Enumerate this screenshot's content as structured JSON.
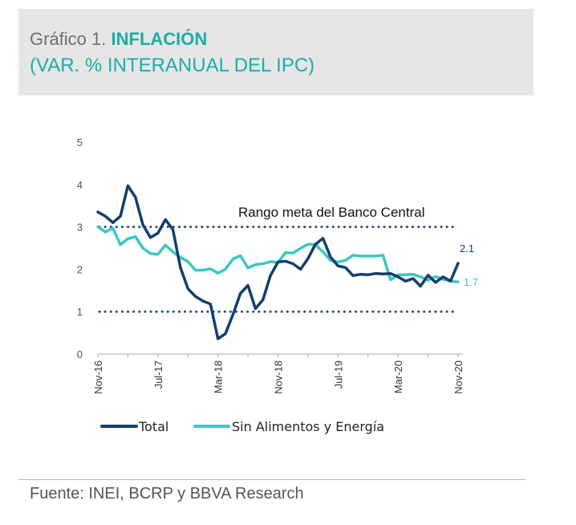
{
  "header": {
    "prefix": "Gráfico 1.",
    "title": "INFLACIÓN",
    "subtitle": "(VAR. % INTERANUAL DEL IPC)"
  },
  "footer": {
    "source": "Fuente: INEI, BCRP y BBVA Research"
  },
  "colors": {
    "total": "#123f6e",
    "core": "#3dc6c4",
    "target_band": "#1f4e79",
    "title_accent": "#1aaea8"
  },
  "chart_data": {
    "type": "line",
    "x_tick_labels": [
      "Nov-16",
      "Jul-17",
      "Mar-18",
      "Nov-18",
      "Jul-19",
      "Mar-20",
      "Nov-20"
    ],
    "y_ticks": [
      "0",
      "1",
      "2",
      "3",
      "4",
      "5"
    ],
    "ylim": [
      0,
      5
    ],
    "grid": false,
    "legend_position": "bottom",
    "annotation": "Rango meta del Banco Central",
    "target_range": [
      1,
      3
    ],
    "x": [
      "2016-11",
      "2016-12",
      "2017-01",
      "2017-02",
      "2017-03",
      "2017-04",
      "2017-05",
      "2017-06",
      "2017-07",
      "2017-08",
      "2017-09",
      "2017-10",
      "2017-11",
      "2017-12",
      "2018-01",
      "2018-02",
      "2018-03",
      "2018-04",
      "2018-05",
      "2018-06",
      "2018-07",
      "2018-08",
      "2018-09",
      "2018-10",
      "2018-11",
      "2018-12",
      "2019-01",
      "2019-02",
      "2019-03",
      "2019-04",
      "2019-05",
      "2019-06",
      "2019-07",
      "2019-08",
      "2019-09",
      "2019-10",
      "2019-11",
      "2019-12",
      "2020-01",
      "2020-02",
      "2020-03",
      "2020-04",
      "2020-05",
      "2020-06",
      "2020-07",
      "2020-08",
      "2020-09",
      "2020-10",
      "2020-11"
    ],
    "series": [
      {
        "name": "Total",
        "values": [
          3.35,
          3.25,
          3.1,
          3.25,
          3.97,
          3.7,
          3.05,
          2.75,
          2.85,
          3.17,
          2.94,
          2.04,
          1.54,
          1.36,
          1.25,
          1.18,
          0.36,
          0.48,
          0.93,
          1.43,
          1.62,
          1.07,
          1.28,
          1.85,
          2.17,
          2.19,
          2.13,
          2.0,
          2.25,
          2.59,
          2.73,
          2.29,
          2.08,
          2.04,
          1.85,
          1.88,
          1.87,
          1.9,
          1.89,
          1.9,
          1.82,
          1.72,
          1.78,
          1.6,
          1.86,
          1.69,
          1.82,
          1.72,
          2.14
        ],
        "end_label": "2.1"
      },
      {
        "name": "Sin Alimentos y Energía",
        "values": [
          3.0,
          2.88,
          2.97,
          2.58,
          2.72,
          2.77,
          2.5,
          2.37,
          2.35,
          2.57,
          2.41,
          2.28,
          2.18,
          1.98,
          1.98,
          2.01,
          1.91,
          2.0,
          2.24,
          2.32,
          2.03,
          2.11,
          2.13,
          2.18,
          2.16,
          2.39,
          2.38,
          2.49,
          2.59,
          2.58,
          2.41,
          2.21,
          2.17,
          2.21,
          2.33,
          2.31,
          2.31,
          2.31,
          2.33,
          1.75,
          1.87,
          1.87,
          1.88,
          1.82,
          1.74,
          1.83,
          1.76,
          1.72,
          1.7
        ],
        "end_label": "1.7"
      }
    ]
  }
}
